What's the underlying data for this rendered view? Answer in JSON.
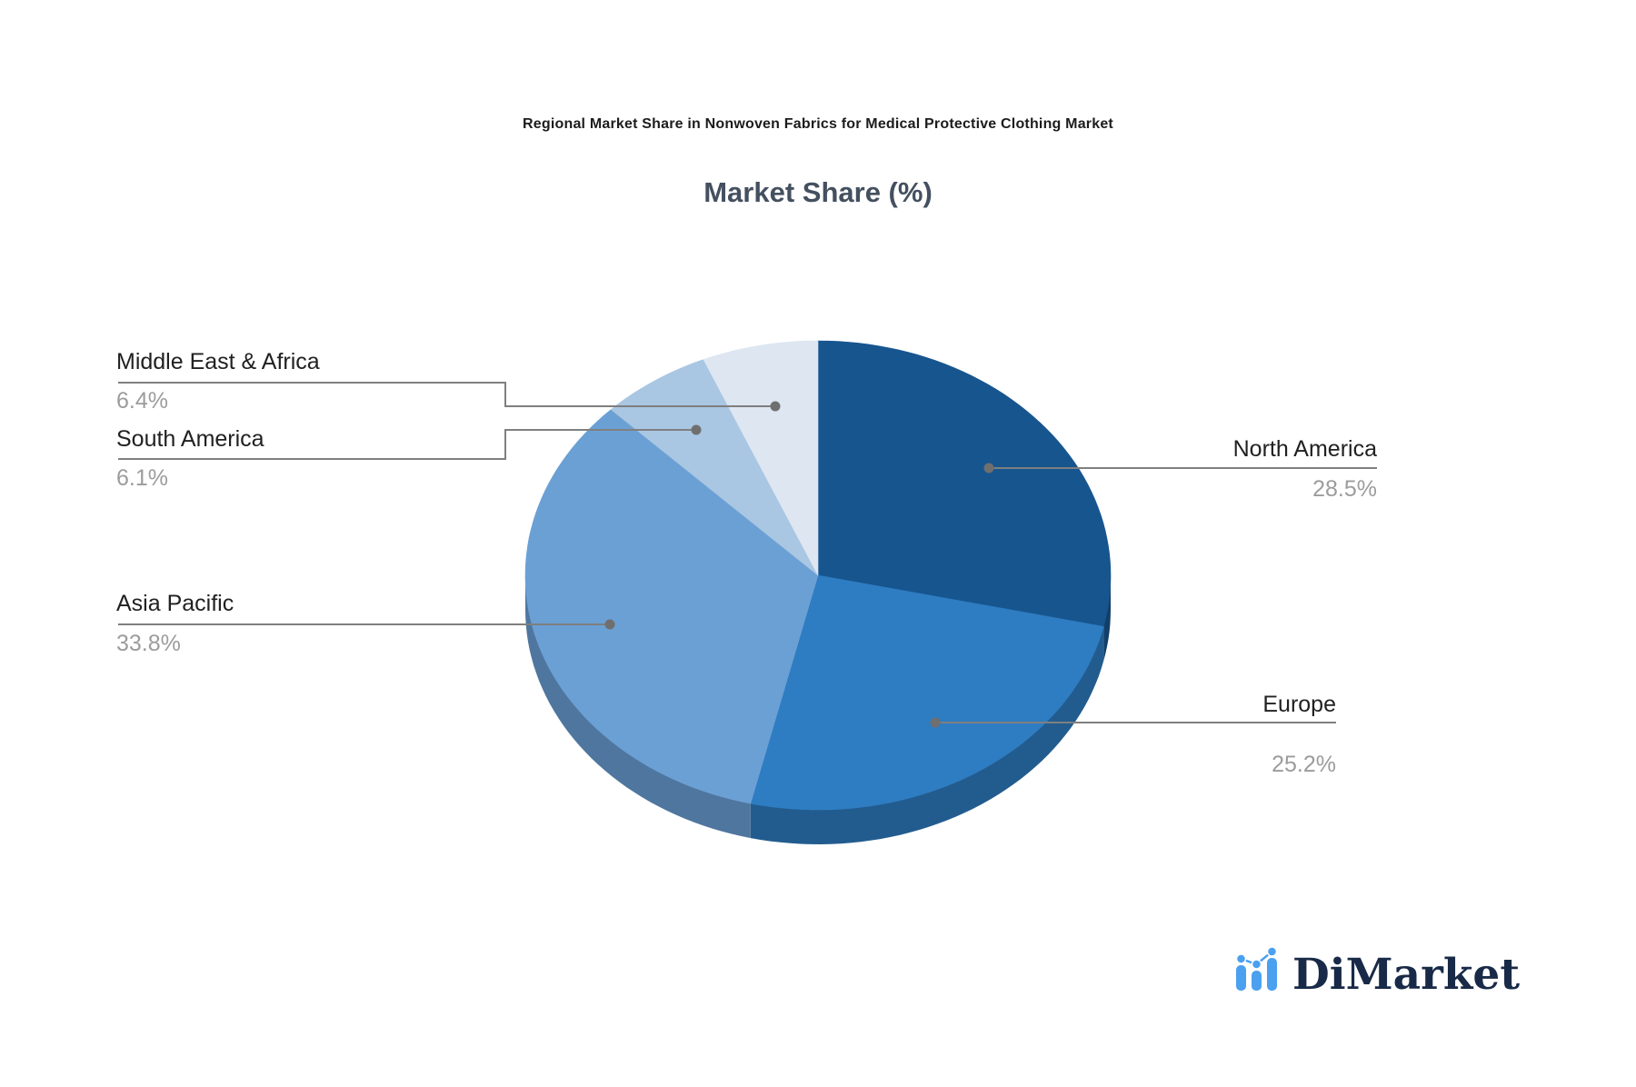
{
  "title": "Regional Market Share in Nonwoven Fabrics for Medical Protective Clothing Market",
  "subtitle": "Market Share (%)",
  "logo": {
    "name": "DiMarket"
  },
  "chart_data": {
    "type": "pie",
    "style": "3d",
    "title": "Regional Market Share in Nonwoven Fabrics for Medical Protective Clothing Market",
    "subtitle": "Market Share (%)",
    "unit": "%",
    "categories": [
      "North America",
      "Europe",
      "Asia Pacific",
      "South America",
      "Middle East & Africa"
    ],
    "values": [
      28.5,
      25.2,
      33.8,
      6.1,
      6.4
    ],
    "formatted_values": [
      "28.5%",
      "25.2%",
      "33.8%",
      "6.1%",
      "6.4%"
    ],
    "colors": [
      "#17558F",
      "#2E7CC1",
      "#6BA0D5",
      "#A9C6E2",
      "#DDE6F1"
    ],
    "start_angle_deg": 90,
    "direction": "clockwise",
    "legend_position": "none",
    "leader_line_color": "#7F7F7F",
    "label_color": "#212121",
    "value_color": "#9C9C9C"
  }
}
